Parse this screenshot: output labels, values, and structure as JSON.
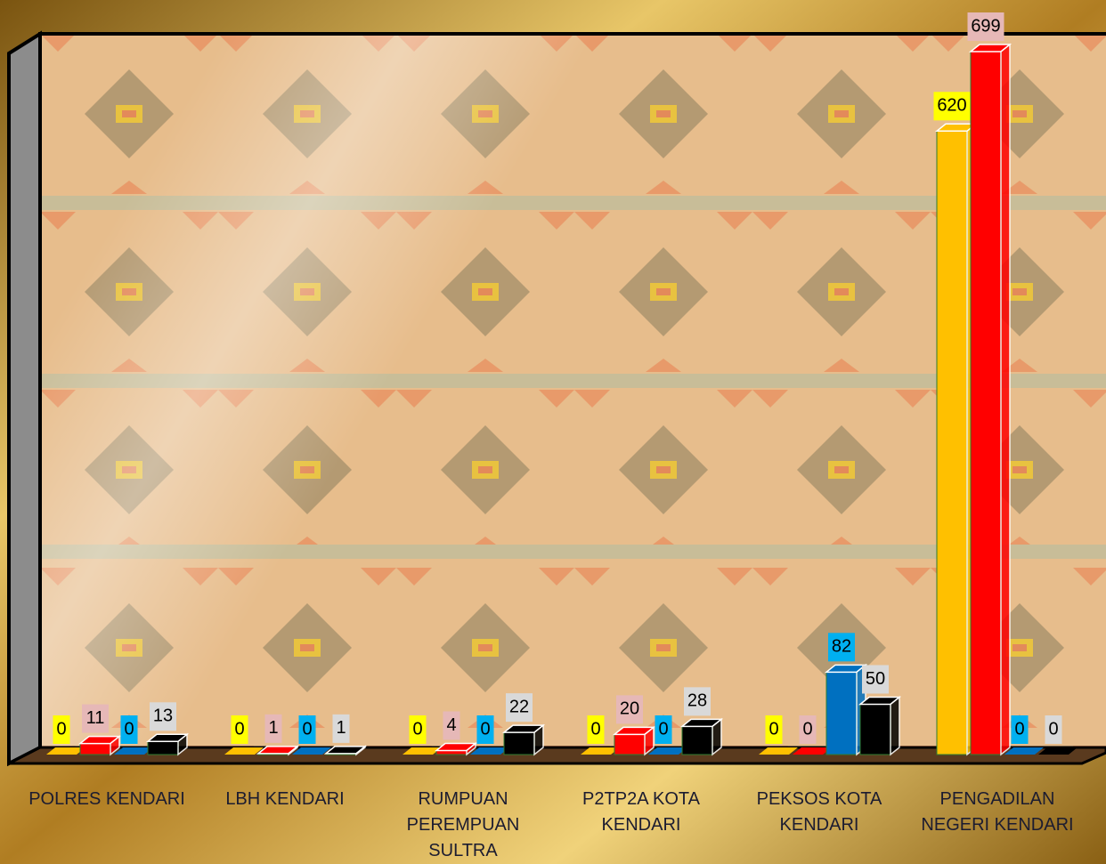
{
  "chart_data": {
    "type": "bar3d",
    "categories": [
      "POLRES KENDARI",
      "LBH KENDARI",
      "RUMPUAN PEREMPUAN SULTRA",
      "P2TP2A KOTA KENDARI",
      "PEKSOS KOTA KENDARI",
      "PENGADILAN NEGERI KENDARI"
    ],
    "series": [
      {
        "color": "#ffc000",
        "label_color": "#ffff00",
        "values": [
          0,
          0,
          0,
          0,
          0,
          620
        ]
      },
      {
        "color": "#ff0000",
        "label_color": "#e6b8b7",
        "values": [
          11,
          1,
          4,
          20,
          0,
          699
        ]
      },
      {
        "color": "#0070c0",
        "label_color": "#00b0f0",
        "values": [
          0,
          0,
          0,
          0,
          82,
          0
        ]
      },
      {
        "color": "#000000",
        "label_color": "#d9d9d9",
        "values": [
          13,
          1,
          22,
          28,
          50,
          0
        ]
      }
    ]
  }
}
